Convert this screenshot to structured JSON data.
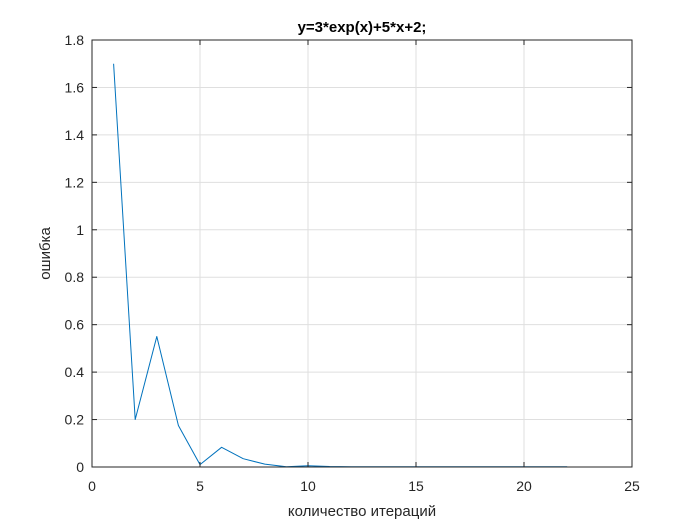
{
  "chart_data": {
    "type": "line",
    "title": "y=3*exp(x)+5*x+2;",
    "xlabel": "количество итераций",
    "ylabel": "ошибка",
    "xlim": [
      0,
      25
    ],
    "ylim": [
      0,
      1.8
    ],
    "xticks": [
      "0",
      "5",
      "10",
      "15",
      "20",
      "25"
    ],
    "yticks": [
      "0",
      "0.2",
      "0.4",
      "0.6",
      "0.8",
      "1",
      "1.2",
      "1.4",
      "1.6",
      "1.8"
    ],
    "grid": true,
    "series": [
      {
        "color": "#0072BD",
        "x": [
          1,
          2,
          3,
          4,
          5,
          6,
          7,
          8,
          9,
          10,
          11,
          12,
          13,
          14,
          15,
          16,
          17,
          18,
          19,
          20,
          21,
          22
        ],
        "y": [
          1.7,
          0.2,
          0.55,
          0.175,
          0.01,
          0.083,
          0.035,
          0.012,
          0.001,
          0.005,
          0.002,
          0.001,
          0.001,
          0.001,
          0.001,
          0.001,
          0.001,
          0.001,
          0.001,
          0.001,
          0.001,
          0.001
        ]
      }
    ]
  }
}
